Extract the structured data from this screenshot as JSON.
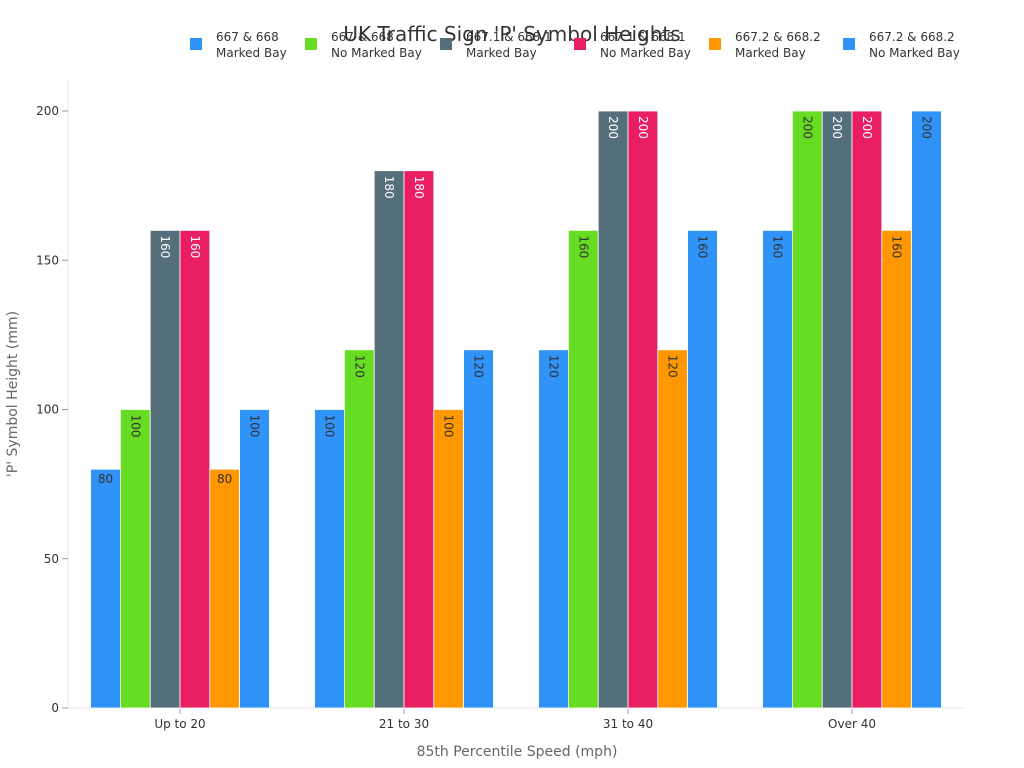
{
  "chart_data": {
    "type": "bar",
    "title": "UK Traffic Sign 'P' Symbol Heights",
    "xlabel": "85th Percentile Speed (mph)",
    "ylabel": "'P' Symbol Height (mm)",
    "categories": [
      "Up to 20",
      "21 to 30",
      "31 to 40",
      "Over 40"
    ],
    "ylim": [
      0,
      210
    ],
    "yticks": [
      0,
      50,
      100,
      150,
      200
    ],
    "grid": false,
    "legend_position": "top",
    "series": [
      {
        "name": [
          "667 & 668",
          "Marked Bay"
        ],
        "color": "#2F93F8",
        "label_color": "#333333",
        "values": [
          80,
          100,
          120,
          160
        ]
      },
      {
        "name": [
          "667 & 668",
          "No Marked Bay"
        ],
        "color": "#66DD22",
        "label_color": "#333333",
        "values": [
          100,
          120,
          160,
          200
        ]
      },
      {
        "name": [
          "667.1 & 668.1",
          "Marked Bay"
        ],
        "color": "#546E7A",
        "label_color": "#ffffff",
        "values": [
          160,
          180,
          200,
          200
        ]
      },
      {
        "name": [
          "667.1 & 668.1",
          "No Marked Bay"
        ],
        "color": "#E91E63",
        "label_color": "#ffffff",
        "values": [
          160,
          180,
          200,
          200
        ]
      },
      {
        "name": [
          "667.2 & 668.2",
          "Marked Bay"
        ],
        "color": "#FF9800",
        "label_color": "#333333",
        "values": [
          80,
          100,
          120,
          160
        ]
      },
      {
        "name": [
          "667.2 & 668.2",
          "No Marked Bay"
        ],
        "color": "#2F93F8",
        "label_color": "#333333",
        "values": [
          100,
          120,
          160,
          200
        ]
      }
    ]
  }
}
